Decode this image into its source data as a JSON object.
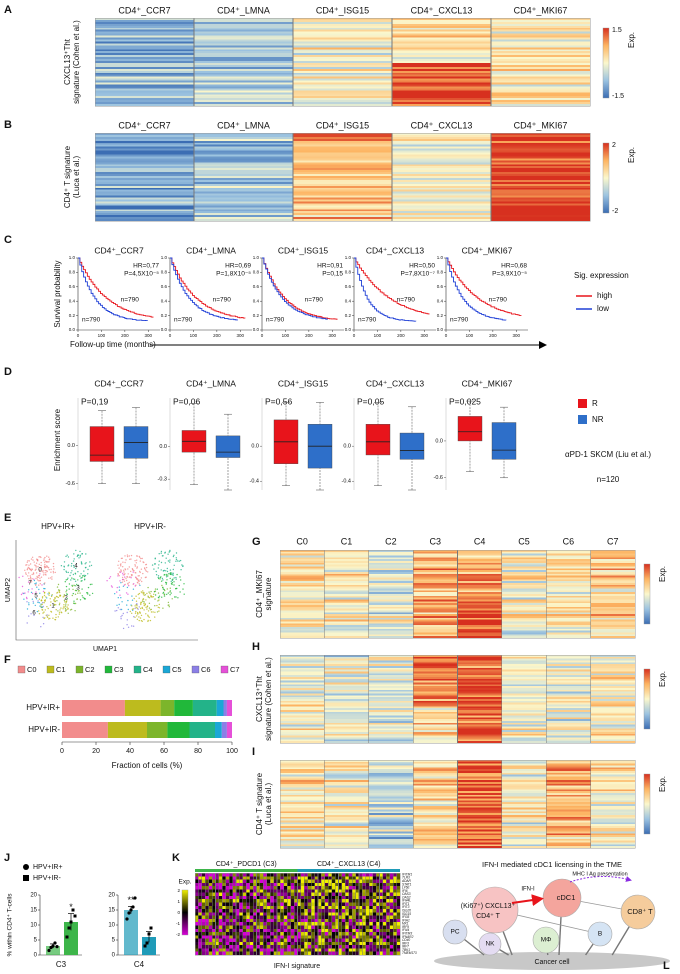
{
  "A": {
    "letter": "A",
    "ylabel_lines": [
      "CXCL13⁺Tht",
      "signature (Cohen et al.)"
    ],
    "colorbar": {
      "label": "Exp.",
      "ticks": [
        1.5,
        -1.5
      ]
    }
  },
  "B": {
    "letter": "B",
    "ylabel_lines": [
      "CD4⁺ T signature",
      "(Luca et al.)"
    ],
    "colorbar": {
      "label": "Exp.",
      "ticks": [
        2,
        -2
      ]
    }
  },
  "subsets": [
    {
      "label": "CD4⁺_CCR7",
      "color": "#e6197a"
    },
    {
      "label": "CD4⁺_LMNA",
      "color": "#c9961a"
    },
    {
      "label": "CD4⁺_ISG15",
      "color": "#2a7ac0"
    },
    {
      "label": "CD4⁺_CXCL13",
      "color": "#e020e0"
    },
    {
      "label": "CD4⁺_MKI67",
      "color": "#13a0a0"
    }
  ],
  "C": {
    "letter": "C",
    "ylabel": "Survival probability",
    "xlabel": "Follow-up time (months)",
    "xticks": [
      0,
      100,
      200,
      300
    ],
    "yticks": [
      {
        "value": 0,
        "label": "0.0"
      },
      {
        "value": 0.2,
        "label": "0.2"
      },
      {
        "value": 0.4,
        "label": "0.4"
      },
      {
        "value": 0.6,
        "label": "0.6"
      },
      {
        "value": 0.8,
        "label": "0.8"
      },
      {
        "value": 1,
        "label": "1.0"
      }
    ],
    "legend": {
      "title": "Sig. expression",
      "items": [
        {
          "name": "high",
          "color": "#e8141b"
        },
        {
          "name": "low",
          "color": "#1f3fd6"
        }
      ]
    },
    "plots": [
      {
        "hr": "HR=0,77",
        "p": "P=4,5X10⁻⁵",
        "n_high": "n=790",
        "n_low": "n=790"
      },
      {
        "hr": "HR=0,69",
        "p": "P=1,8X10⁻⁵",
        "n_high": "n=790",
        "n_low": "n=790"
      },
      {
        "hr": "HR=0,91",
        "p": "P=0,15",
        "n_high": "n=790",
        "n_low": "n=790"
      },
      {
        "hr": "HR=0,50",
        "p": "P=7,8X10⁻⁷",
        "n_high": "n=790",
        "n_low": "n=790"
      },
      {
        "hr": "HR=0,68",
        "p": "P=3,9X10⁻⁵",
        "n_high": "n=790",
        "n_low": "n=790"
      }
    ]
  },
  "D": {
    "letter": "D",
    "ylabel": "Enrichment score",
    "legend": [
      {
        "name": "R",
        "color": "#e8141b"
      },
      {
        "name": "NR",
        "color": "#2e6fc9"
      }
    ],
    "cohort": "αPD-1 SKCM (Liu et al.)",
    "n": "n=120",
    "plots": [
      {
        "p": "P=0,19",
        "ylim": [
          -0.7,
          0.75
        ],
        "yticks": [
          {
            "value": 0,
            "label": "0.0"
          },
          -0.6
        ],
        "boxes": [
          {
            "min": -0.6,
            "q1": -0.25,
            "median": -0.15,
            "q3": 0.3,
            "max": 0.55
          },
          {
            "min": -0.6,
            "q1": -0.2,
            "median": 0.05,
            "q3": 0.3,
            "max": 0.6
          }
        ]
      },
      {
        "p": "P=0,06",
        "ylim": [
          -0.4,
          0.45
        ],
        "yticks": [
          {
            "value": 0,
            "label": "0.0"
          },
          -0.3
        ],
        "boxes": [
          {
            "min": -0.35,
            "q1": -0.05,
            "median": 0.05,
            "q3": 0.15,
            "max": 0.4
          },
          {
            "min": -0.4,
            "q1": -0.1,
            "median": -0.05,
            "q3": 0.1,
            "max": 0.3
          }
        ]
      },
      {
        "p": "P=0,56",
        "ylim": [
          -0.5,
          0.55
        ],
        "yticks": [
          {
            "value": 0,
            "label": "0.0"
          },
          -0.4
        ],
        "boxes": [
          {
            "min": -0.45,
            "q1": -0.2,
            "median": 0.05,
            "q3": 0.3,
            "max": 0.5
          },
          {
            "min": -0.5,
            "q1": -0.25,
            "median": 0,
            "q3": 0.25,
            "max": 0.5
          }
        ]
      },
      {
        "p": "P=0,05",
        "ylim": [
          -0.5,
          0.55
        ],
        "yticks": [
          {
            "value": 0,
            "label": "0.0"
          },
          -0.4
        ],
        "boxes": [
          {
            "min": -0.45,
            "q1": -0.1,
            "median": 0.05,
            "q3": 0.25,
            "max": 0.5
          },
          {
            "min": -0.5,
            "q1": -0.15,
            "median": -0.05,
            "q3": 0.15,
            "max": 0.45
          }
        ]
      },
      {
        "p": "P=0,025",
        "ylim": [
          -0.8,
          0.7
        ],
        "yticks": [
          {
            "value": 0,
            "label": "0.0"
          },
          -0.6
        ],
        "boxes": [
          {
            "min": -0.5,
            "q1": 0,
            "median": 0.15,
            "q3": 0.4,
            "max": 0.65
          },
          {
            "min": -0.6,
            "q1": -0.3,
            "median": -0.15,
            "q3": 0.3,
            "max": 0.55
          }
        ]
      }
    ]
  },
  "E": {
    "letter": "E",
    "groups": [
      "HPV+IR+",
      "HPV+IR-"
    ],
    "xlabel": "UMAP1",
    "ylabel": "UMAP2",
    "cluster_labels": [
      "0",
      "1",
      "2",
      "3",
      "4",
      "5",
      "6",
      "7"
    ]
  },
  "F": {
    "letter": "F",
    "type": "stacked_bar_h",
    "categories": [
      "HPV+IR+",
      "HPV+IR-"
    ],
    "xlabel": "Fraction of cells (%)",
    "xlim": [
      0,
      100
    ],
    "xticks": [
      0,
      20,
      40,
      60,
      80,
      100
    ],
    "series": [
      {
        "name": "C0",
        "color": "#f28c8c",
        "values": [
          37,
          27
        ]
      },
      {
        "name": "C1",
        "color": "#bdbb1e",
        "values": [
          21,
          23
        ]
      },
      {
        "name": "C2",
        "color": "#7cb52b",
        "values": [
          8,
          12
        ]
      },
      {
        "name": "C3",
        "color": "#21b83a",
        "values": [
          11,
          13
        ]
      },
      {
        "name": "C4",
        "color": "#23b389",
        "values": [
          14,
          15
        ]
      },
      {
        "name": "C5",
        "color": "#1aa7d6",
        "values": [
          4,
          4
        ]
      },
      {
        "name": "C6",
        "color": "#8b7fe6",
        "values": [
          2,
          3
        ]
      },
      {
        "name": "C7",
        "color": "#e550d8",
        "values": [
          3,
          3
        ]
      }
    ]
  },
  "G": {
    "letter": "G",
    "columns": [
      "C0",
      "C1",
      "C2",
      "C3",
      "C4",
      "C5",
      "C6",
      "C7"
    ],
    "ylabel_lines": [
      "CD4⁺_MKI67",
      "signature"
    ],
    "colorbar_label": "Exp."
  },
  "H": {
    "letter": "H",
    "ylabel_lines": [
      "CXCL13⁺Tht",
      "signature (Cohen et al.)"
    ],
    "colorbar_label": "Exp."
  },
  "I": {
    "letter": "I",
    "ylabel_lines": [
      "CD4⁺ T signature",
      "(Luca et al.)"
    ],
    "colorbar_label": "Exp."
  },
  "J": {
    "letter": "J",
    "ylabel": "% within CD4⁺ T-cells",
    "legend": [
      "HPV+IR+",
      "HPV+IR-"
    ],
    "ylim": [
      0,
      20
    ],
    "yticks": [
      0,
      5,
      10,
      15,
      20
    ],
    "plots": [
      {
        "category": "C3",
        "color": "#3db54a",
        "values": [
          3,
          11
        ],
        "errors": [
          0.7,
          2.8
        ],
        "points": [
          [
            1.5,
            2.5,
            3,
            4,
            2.8
          ],
          [
            6,
            9,
            11,
            15,
            13
          ]
        ],
        "significance": "*"
      },
      {
        "category": "C4",
        "color": "#1f9bb8",
        "values": [
          15,
          6
        ],
        "errors": [
          1.2,
          1.8
        ],
        "points": [
          [
            12,
            14,
            15,
            16,
            19
          ],
          [
            3,
            4,
            7,
            9
          ]
        ],
        "significance": "**"
      }
    ]
  },
  "K": {
    "letter": "K",
    "groups": [
      {
        "label": "CD4⁺_PDCD1 (C3)",
        "color": "#3db54a"
      },
      {
        "label": "CD4⁺_CXCL13 (C4)",
        "color": "#1f9bb8"
      }
    ],
    "colorbar": {
      "label": "Exp.",
      "ticks": [
        2,
        1,
        0,
        -1,
        -2
      ]
    },
    "genes": [
      "IFITM1",
      "TLR3",
      "ADAR",
      "STAT1",
      "LY6E",
      "IFI6",
      "OAS3",
      "OAS2",
      "IFI44L",
      "IFIT1",
      "IFIT3",
      "ISG20",
      "ISG15",
      "IFI35",
      "IFIH1",
      "MX1",
      "IRF9",
      "IFI44",
      "IFITM3",
      "IFNAR2",
      "CD40",
      "IRF3",
      "IRF7",
      "TBK1",
      "TMEM173"
    ],
    "xlabel": "IFN-I signature"
  },
  "L": {
    "letter": "L",
    "title": "IFN-I mediated cDC1 licensing in the TME",
    "labels": {
      "mhc": "MHC I Ag presentation",
      "ifn": "IFN-I",
      "cd4_a": "(Ki67⁺) CXCL13⁺",
      "cd4_b": "CD4⁺ T",
      "cdc1": "cDC1",
      "cd8": "CD8⁺ T",
      "pc": "PC",
      "nk": "NK",
      "mphi": "MΦ",
      "b": "B",
      "cancer": "Cancer cell"
    }
  }
}
